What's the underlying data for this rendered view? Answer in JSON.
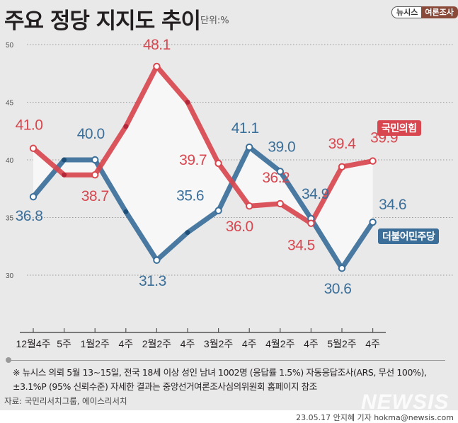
{
  "header": {
    "title": "주요 정당 지지도 추이",
    "unit": "단위:%",
    "brand_left": "뉴시스",
    "brand_right": "여론조사"
  },
  "colors": {
    "ppp": "#d8474f",
    "dp": "#3b6f99",
    "ppp_dark": "#b2283a",
    "dp_dark": "#1d4f78",
    "band_fill": "#f7f7f7",
    "grid": "#9a9a9a",
    "axis": "#555555"
  },
  "chart_data": {
    "type": "line",
    "title": "주요 정당 지지도 추이",
    "xlabel": "",
    "ylabel": "단위:%",
    "ylim": [
      30,
      50
    ],
    "yticks": [
      50,
      45,
      40,
      35,
      30
    ],
    "grid": true,
    "legend": "right",
    "x": [
      "12월4주",
      "5주",
      "1월2주",
      "4주",
      "2월2주",
      "4주",
      "3월2주",
      "4주",
      "4월2주",
      "4주",
      "5월2주",
      "4주"
    ],
    "series": [
      {
        "name": "국민의힘",
        "key": "ppp",
        "values": [
          41.0,
          38.7,
          38.7,
          42.9,
          48.1,
          45.0,
          39.7,
          36.0,
          36.2,
          34.5,
          39.4,
          39.9
        ],
        "labeled": [
          true,
          false,
          true,
          false,
          true,
          false,
          true,
          true,
          true,
          true,
          true,
          true
        ],
        "labels": [
          "41.0",
          "",
          "38.7",
          "",
          "48.1",
          "",
          "39.7",
          "36.0",
          "36.2",
          "34.5",
          "39.4",
          "39.9"
        ]
      },
      {
        "name": "더불어민주당",
        "key": "dp",
        "values": [
          36.8,
          40.0,
          40.0,
          35.5,
          31.3,
          33.7,
          35.6,
          41.1,
          39.0,
          34.9,
          30.6,
          34.6
        ],
        "labeled": [
          true,
          false,
          true,
          false,
          true,
          false,
          true,
          true,
          true,
          true,
          true,
          true
        ],
        "labels": [
          "36.8",
          "",
          "40.0",
          "",
          "31.3",
          "",
          "35.6",
          "41.1",
          "39.0",
          "34.9",
          "30.6",
          "34.6"
        ]
      }
    ]
  },
  "legend": {
    "ppp": "국민의힘",
    "dp": "더불어민주당"
  },
  "footer": {
    "note_line1": "※ 뉴시스 의뢰 5월 13~15일, 전국 18세 이상 성인 남녀 1002명 (응답률 1.5%) 자동응답조사(ARS, 무선 100%),",
    "note_line2": "±3.1%P (95% 신뢰수준) 자세한 결과는 중앙선거여론조사심의위원회 홈페이지 참조",
    "source": "자료: 국민리서치그룹, 에이스리서치",
    "watermark": "NEWSIS",
    "credit": "23.05.17 안지혜 기자 hokma@newsis.com"
  }
}
